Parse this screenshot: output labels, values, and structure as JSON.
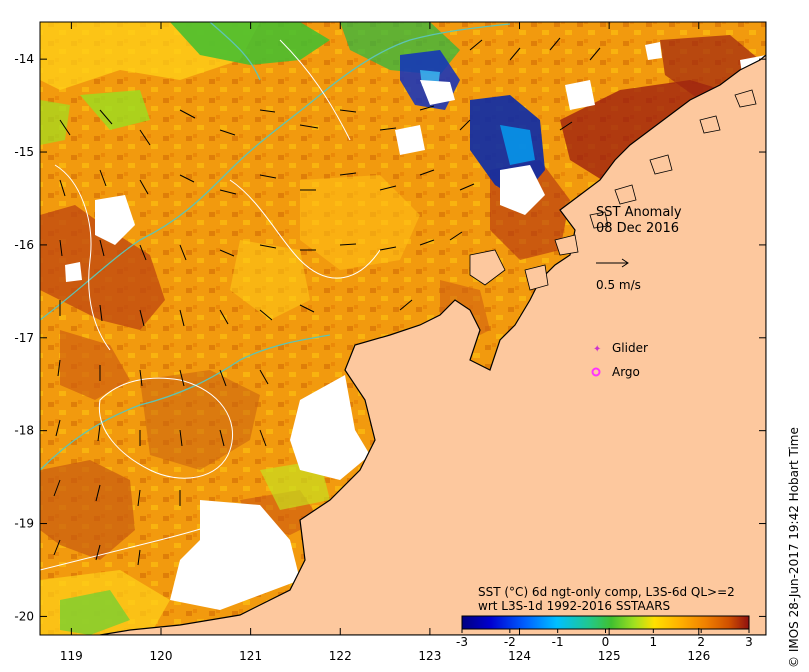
{
  "title": {
    "line1": "SST Anomaly",
    "line2": "08 Dec 2016"
  },
  "scale_arrow": {
    "label": "0.5 m/s"
  },
  "legend": {
    "glider": "Glider",
    "argo": "Argo",
    "glider_color": "#cc33cc",
    "argo_color": "#ff33ff"
  },
  "product": {
    "line1": "SST (°C) 6d ngt-only comp, L3S-6d QL>=2",
    "line2": "wrt L3S-1d 1992-2016 SSTAARS"
  },
  "credit": "© IMOS 28-Jun-2017 19:42 Hobart Time",
  "axes": {
    "x_ticks": [
      "119",
      "120",
      "121",
      "122",
      "123",
      "124",
      "125",
      "126"
    ],
    "y_ticks": [
      "-14",
      "-15",
      "-16",
      "-17",
      "-18",
      "-19",
      "-20"
    ],
    "x_range": [
      118.65,
      126.75
    ],
    "y_range": [
      -20.2,
      -13.6
    ]
  },
  "colorbar": {
    "ticks": [
      "-3",
      "-2",
      "-1",
      "0",
      "1",
      "2",
      "3"
    ],
    "range": [
      -3,
      3
    ],
    "colors": [
      "#000080",
      "#0000d0",
      "#0060ff",
      "#00c0ff",
      "#20d0a0",
      "#30c030",
      "#a0e020",
      "#ffe000",
      "#ffb000",
      "#f08000",
      "#d05000",
      "#901010"
    ]
  },
  "colors": {
    "land": "#fdc89e",
    "coast": "#000000",
    "bathy_contour": "#5ec4b4",
    "white_contour": "#ffffff"
  }
}
